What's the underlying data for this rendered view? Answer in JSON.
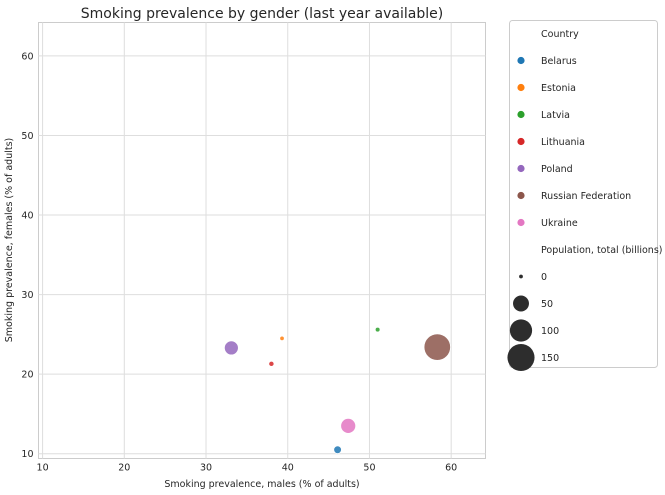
{
  "chart_data": {
    "type": "scatter",
    "title": "Smoking prevalence by gender (last year available)",
    "xlabel": "Smoking prevalence, males (% of adults)",
    "ylabel": "Smoking prevalence, females (% of adults)",
    "xlim": [
      9.5,
      64.2
    ],
    "ylim": [
      9.4,
      64.2
    ],
    "xticks": [
      10,
      20,
      30,
      40,
      50,
      60
    ],
    "yticks": [
      10,
      20,
      30,
      40,
      50,
      60
    ],
    "grid": true,
    "legend_position": "outside-right",
    "hue_title": "Country",
    "size_title": "Population, total (billions)",
    "series": [
      {
        "name": "Belarus",
        "color": "#1f77b4",
        "x": 46.1,
        "y": 10.5,
        "population": 9.5
      },
      {
        "name": "Estonia",
        "color": "#ff7f0e",
        "x": 39.3,
        "y": 24.5,
        "population": 1.3
      },
      {
        "name": "Latvia",
        "color": "#2ca02c",
        "x": 51.0,
        "y": 25.6,
        "population": 1.9
      },
      {
        "name": "Lithuania",
        "color": "#d62728",
        "x": 38.0,
        "y": 21.3,
        "population": 2.8
      },
      {
        "name": "Poland",
        "color": "#9467bd",
        "x": 33.1,
        "y": 23.3,
        "population": 38.0
      },
      {
        "name": "Russian Federation",
        "color": "#8c564b",
        "x": 58.3,
        "y": 23.4,
        "population": 144.0
      },
      {
        "name": "Ukraine",
        "color": "#e377c2",
        "x": 47.4,
        "y": 13.5,
        "population": 44.0
      }
    ],
    "size_legend": [
      {
        "label": "0",
        "value": 0
      },
      {
        "label": "50",
        "value": 50
      },
      {
        "label": "100",
        "value": 100
      },
      {
        "label": "150",
        "value": 150
      }
    ]
  }
}
